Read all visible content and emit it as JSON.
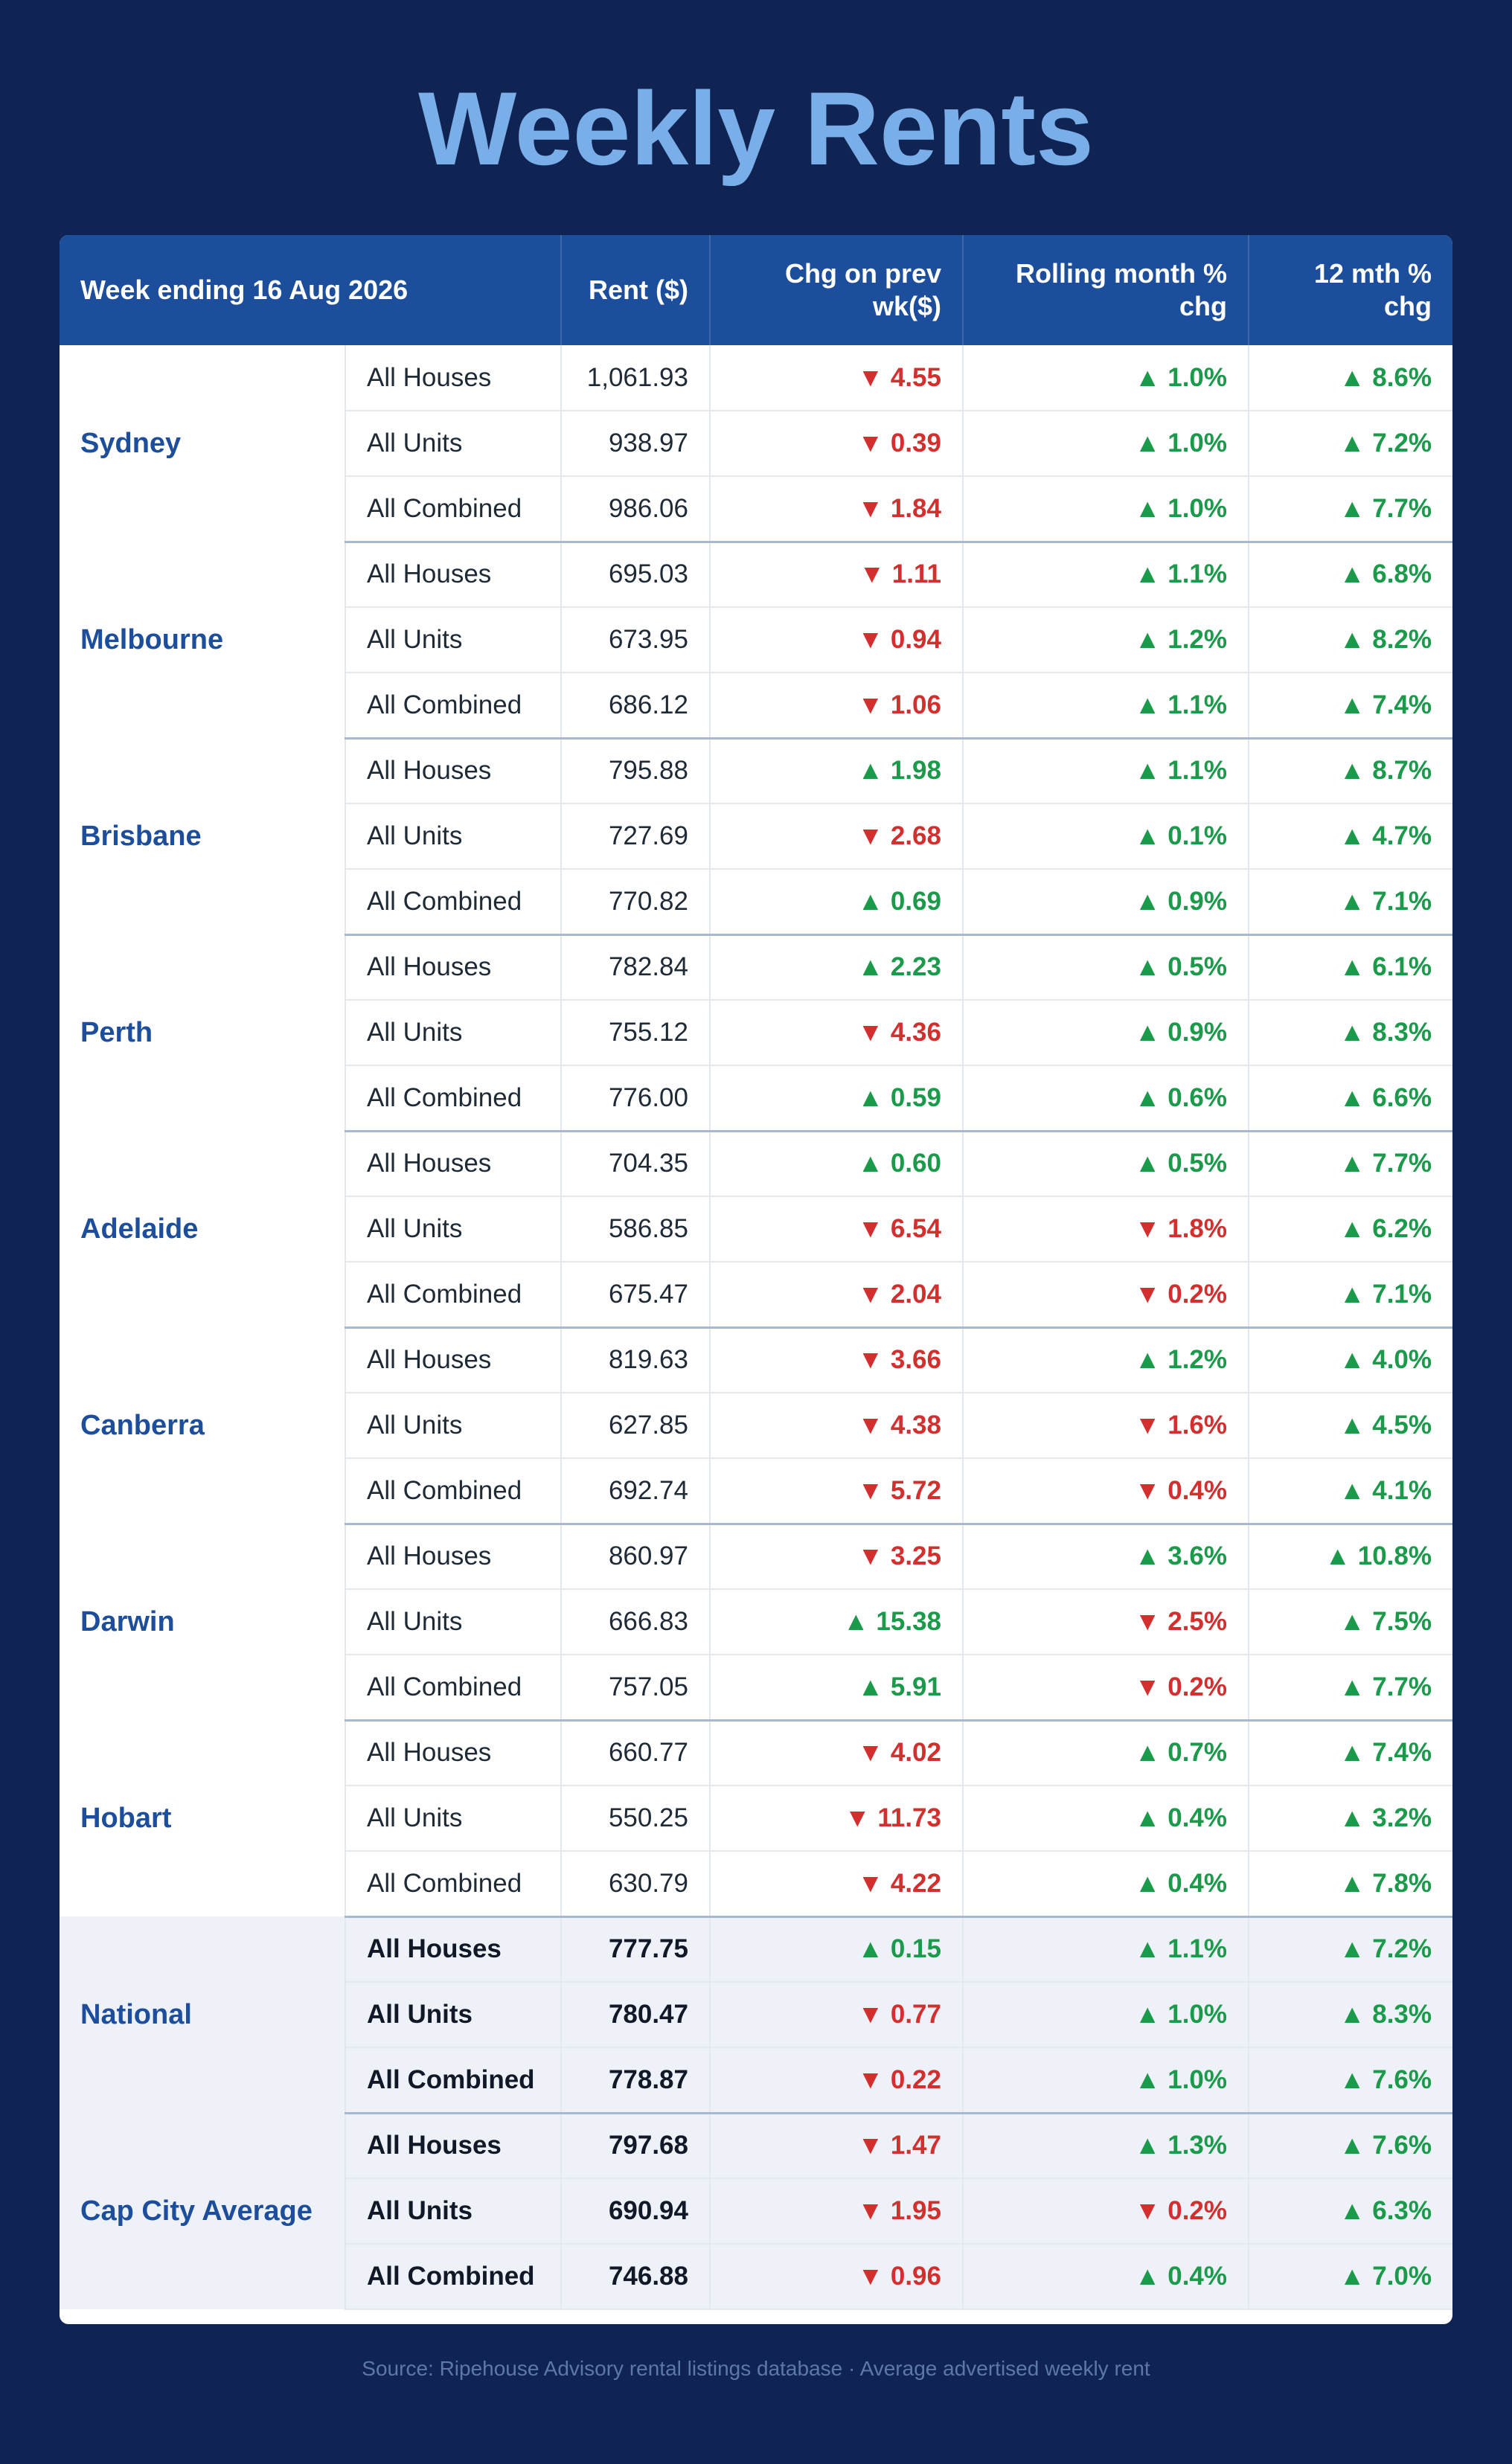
{
  "title": "Weekly Rents",
  "source": "Source: Ripehouse Advisory rental listings database · Average advertised weekly rent",
  "colors": {
    "background": "#0f2452",
    "header": "#1d4e9c",
    "up": "#1a9a4a",
    "down": "#d32f2f",
    "title": "#7aaee8"
  },
  "chart_data": {
    "type": "table",
    "columns": [
      "Week ending 16 Aug 2026",
      "",
      "Rent ($)",
      "Chg on prev wk($)",
      "Rolling month % chg",
      "12 mth % chg"
    ],
    "groups": [
      {
        "city": "Sydney",
        "summary": false,
        "rows": [
          {
            "type": "All Houses",
            "rent": "1,061.93",
            "wk": "▼ 4.55",
            "mth": "▲ 1.0%",
            "yr": "▲ 8.6%"
          },
          {
            "type": "All Units",
            "rent": "938.97",
            "wk": "▼ 0.39",
            "mth": "▲ 1.0%",
            "yr": "▲ 7.2%"
          },
          {
            "type": "All Combined",
            "rent": "986.06",
            "wk": "▼ 1.84",
            "mth": "▲ 1.0%",
            "yr": "▲ 7.7%"
          }
        ]
      },
      {
        "city": "Melbourne",
        "summary": false,
        "rows": [
          {
            "type": "All Houses",
            "rent": "695.03",
            "wk": "▼ 1.11",
            "mth": "▲ 1.1%",
            "yr": "▲ 6.8%"
          },
          {
            "type": "All Units",
            "rent": "673.95",
            "wk": "▼ 0.94",
            "mth": "▲ 1.2%",
            "yr": "▲ 8.2%"
          },
          {
            "type": "All Combined",
            "rent": "686.12",
            "wk": "▼ 1.06",
            "mth": "▲ 1.1%",
            "yr": "▲ 7.4%"
          }
        ]
      },
      {
        "city": "Brisbane",
        "summary": false,
        "rows": [
          {
            "type": "All Houses",
            "rent": "795.88",
            "wk": "▲ 1.98",
            "mth": "▲ 1.1%",
            "yr": "▲ 8.7%"
          },
          {
            "type": "All Units",
            "rent": "727.69",
            "wk": "▼ 2.68",
            "mth": "▲ 0.1%",
            "yr": "▲ 4.7%"
          },
          {
            "type": "All Combined",
            "rent": "770.82",
            "wk": "▲ 0.69",
            "mth": "▲ 0.9%",
            "yr": "▲ 7.1%"
          }
        ]
      },
      {
        "city": "Perth",
        "summary": false,
        "rows": [
          {
            "type": "All Houses",
            "rent": "782.84",
            "wk": "▲ 2.23",
            "mth": "▲ 0.5%",
            "yr": "▲ 6.1%"
          },
          {
            "type": "All Units",
            "rent": "755.12",
            "wk": "▼ 4.36",
            "mth": "▲ 0.9%",
            "yr": "▲ 8.3%"
          },
          {
            "type": "All Combined",
            "rent": "776.00",
            "wk": "▲ 0.59",
            "mth": "▲ 0.6%",
            "yr": "▲ 6.6%"
          }
        ]
      },
      {
        "city": "Adelaide",
        "summary": false,
        "rows": [
          {
            "type": "All Houses",
            "rent": "704.35",
            "wk": "▲ 0.60",
            "mth": "▲ 0.5%",
            "yr": "▲ 7.7%"
          },
          {
            "type": "All Units",
            "rent": "586.85",
            "wk": "▼ 6.54",
            "mth": "▼ 1.8%",
            "yr": "▲ 6.2%"
          },
          {
            "type": "All Combined",
            "rent": "675.47",
            "wk": "▼ 2.04",
            "mth": "▼ 0.2%",
            "yr": "▲ 7.1%"
          }
        ]
      },
      {
        "city": "Canberra",
        "summary": false,
        "rows": [
          {
            "type": "All Houses",
            "rent": "819.63",
            "wk": "▼ 3.66",
            "mth": "▲ 1.2%",
            "yr": "▲ 4.0%"
          },
          {
            "type": "All Units",
            "rent": "627.85",
            "wk": "▼ 4.38",
            "mth": "▼ 1.6%",
            "yr": "▲ 4.5%"
          },
          {
            "type": "All Combined",
            "rent": "692.74",
            "wk": "▼ 5.72",
            "mth": "▼ 0.4%",
            "yr": "▲ 4.1%"
          }
        ]
      },
      {
        "city": "Darwin",
        "summary": false,
        "rows": [
          {
            "type": "All Houses",
            "rent": "860.97",
            "wk": "▼ 3.25",
            "mth": "▲ 3.6%",
            "yr": "▲ 10.8%"
          },
          {
            "type": "All Units",
            "rent": "666.83",
            "wk": "▲ 15.38",
            "mth": "▼ 2.5%",
            "yr": "▲ 7.5%"
          },
          {
            "type": "All Combined",
            "rent": "757.05",
            "wk": "▲ 5.91",
            "mth": "▼ 0.2%",
            "yr": "▲ 7.7%"
          }
        ]
      },
      {
        "city": "Hobart",
        "summary": false,
        "rows": [
          {
            "type": "All Houses",
            "rent": "660.77",
            "wk": "▼ 4.02",
            "mth": "▲ 0.7%",
            "yr": "▲ 7.4%"
          },
          {
            "type": "All Units",
            "rent": "550.25",
            "wk": "▼ 11.73",
            "mth": "▲ 0.4%",
            "yr": "▲ 3.2%"
          },
          {
            "type": "All Combined",
            "rent": "630.79",
            "wk": "▼ 4.22",
            "mth": "▲ 0.4%",
            "yr": "▲ 7.8%"
          }
        ]
      },
      {
        "city": "National",
        "summary": true,
        "rows": [
          {
            "type": "All Houses",
            "rent": "777.75",
            "wk": "▲ 0.15",
            "mth": "▲ 1.1%",
            "yr": "▲ 7.2%"
          },
          {
            "type": "All Units",
            "rent": "780.47",
            "wk": "▼ 0.77",
            "mth": "▲ 1.0%",
            "yr": "▲ 8.3%"
          },
          {
            "type": "All Combined",
            "rent": "778.87",
            "wk": "▼ 0.22",
            "mth": "▲ 1.0%",
            "yr": "▲ 7.6%"
          }
        ]
      },
      {
        "city": "Cap City Average",
        "summary": true,
        "rows": [
          {
            "type": "All Houses",
            "rent": "797.68",
            "wk": "▼ 1.47",
            "mth": "▲ 1.3%",
            "yr": "▲ 7.6%"
          },
          {
            "type": "All Units",
            "rent": "690.94",
            "wk": "▼ 1.95",
            "mth": "▼ 0.2%",
            "yr": "▲ 6.3%"
          },
          {
            "type": "All Combined",
            "rent": "746.88",
            "wk": "▼ 0.96",
            "mth": "▲ 0.4%",
            "yr": "▲ 7.0%"
          }
        ]
      }
    ]
  }
}
